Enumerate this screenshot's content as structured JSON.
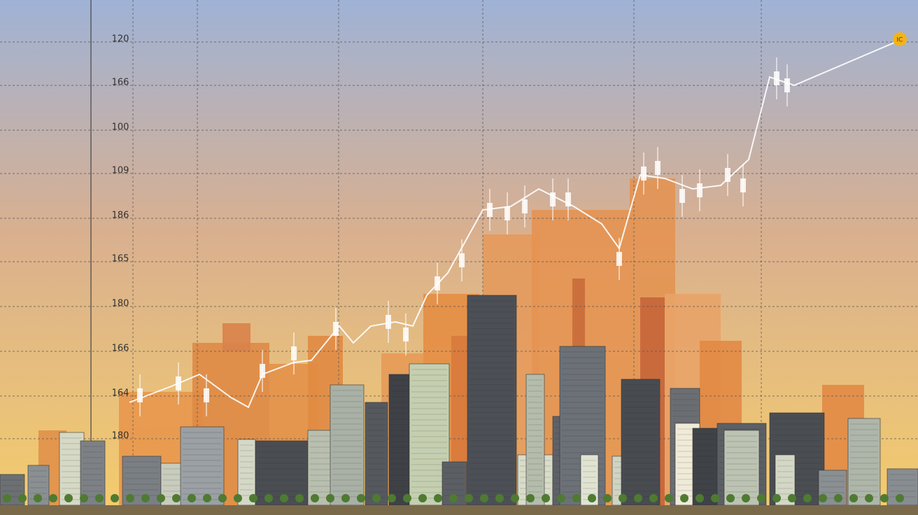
{
  "axis_labels": [
    "120",
    "166",
    "100",
    "109",
    "186",
    "165",
    "180",
    "166",
    "164",
    "180"
  ],
  "badge": "IC"
}
